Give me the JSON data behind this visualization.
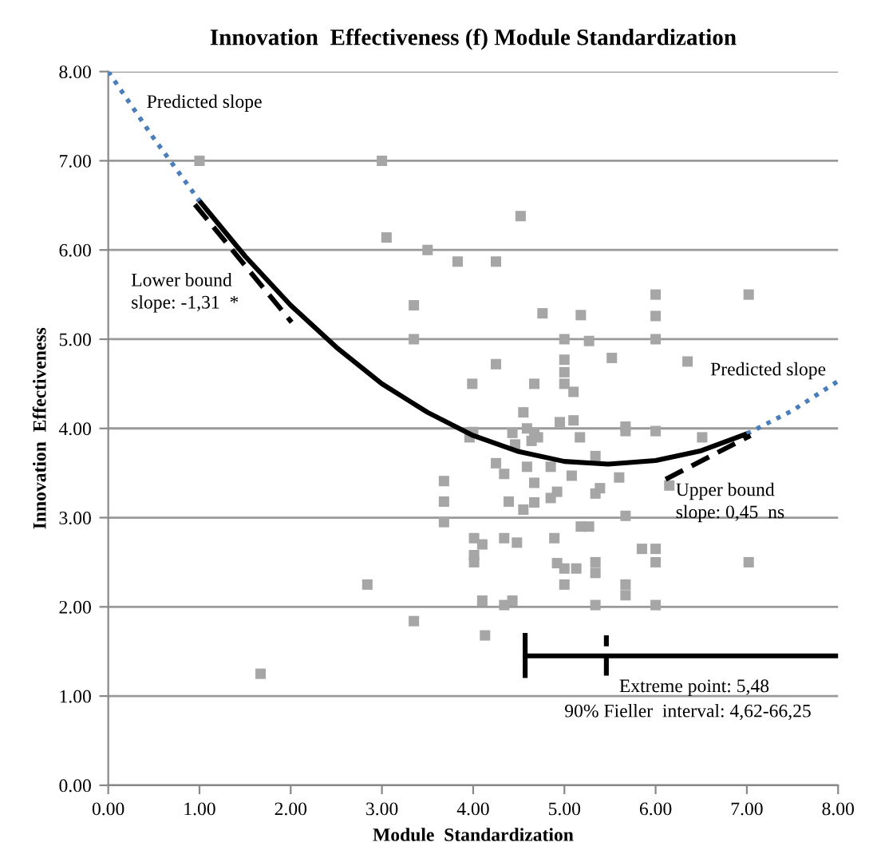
{
  "chart_data": {
    "type": "scatter",
    "title": "Innovation  Effectiveness (f) Module Standardization",
    "xlabel": "Module  Standardization",
    "ylabel": "Innovation  Effectiveness",
    "xlim": [
      0,
      8
    ],
    "ylim": [
      0,
      8
    ],
    "xticks": [
      {
        "value": 0,
        "label": "0.00"
      },
      {
        "value": 1,
        "label": "1.00"
      },
      {
        "value": 2,
        "label": "2.00"
      },
      {
        "value": 3,
        "label": "3.00"
      },
      {
        "value": 4,
        "label": "4.00"
      },
      {
        "value": 5,
        "label": "5.00"
      },
      {
        "value": 6,
        "label": "6.00"
      },
      {
        "value": 7,
        "label": "7.00"
      },
      {
        "value": 8,
        "label": "8.00"
      }
    ],
    "yticks": [
      {
        "value": 0,
        "label": "0.00"
      },
      {
        "value": 1,
        "label": "1.00"
      },
      {
        "value": 2,
        "label": "2.00"
      },
      {
        "value": 3,
        "label": "3.00"
      },
      {
        "value": 4,
        "label": "4.00"
      },
      {
        "value": 5,
        "label": "5.00"
      },
      {
        "value": 6,
        "label": "6.00"
      },
      {
        "value": 7,
        "label": "7.00"
      },
      {
        "value": 8,
        "label": "8.00"
      }
    ],
    "grid": "y",
    "annotations": [
      "Predicted slope",
      "Lower bound\nslope: -1,31  *",
      "Predicted slope",
      "Upper bound\nslope: 0,45  ns",
      "Extreme point: 5,48",
      "90% Fieller  interval: 4,62-66,25"
    ],
    "series": [
      {
        "color": "#a6a6a6",
        "marker": "square",
        "x": [
          1.0,
          3.0,
          3.05,
          3.5,
          3.83,
          4.25,
          4.52,
          3.35,
          3.35,
          4.76,
          5.18,
          5.0,
          5.27,
          5.52,
          6.0,
          6.0,
          6.0,
          6.35,
          7.02,
          5.0,
          5.0,
          4.25,
          3.99,
          4.67,
          5.0,
          5.1,
          4.55,
          4.95,
          5.1,
          4.0,
          4.43,
          4.59,
          4.67,
          4.64,
          4.71,
          4.46,
          4.25,
          3.96,
          5.17,
          5.34,
          5.67,
          5.67,
          6.0,
          6.51,
          3.68,
          3.68,
          3.68,
          4.34,
          4.59,
          4.85,
          4.67,
          5.08,
          5.6,
          5.34,
          5.39,
          4.39,
          4.55,
          4.67,
          4.85,
          4.92,
          5.67,
          5.18,
          5.27,
          6.15,
          4.01,
          4.1,
          4.01,
          4.01,
          4.34,
          4.48,
          4.89,
          4.92,
          5.0,
          5.13,
          5.0,
          5.34,
          5.34,
          5.67,
          5.67,
          5.85,
          6.0,
          6.0,
          7.02,
          6.0,
          2.84,
          4.1,
          4.34,
          4.43,
          5.34,
          3.35,
          4.13,
          1.67
        ],
        "values": [
          7.0,
          7.0,
          6.14,
          6.0,
          5.87,
          5.87,
          6.38,
          5.38,
          5.0,
          5.29,
          5.27,
          5.0,
          4.98,
          4.79,
          5.5,
          5.26,
          5.0,
          4.75,
          5.5,
          4.77,
          4.63,
          4.72,
          4.5,
          4.5,
          4.5,
          4.41,
          4.18,
          4.07,
          4.09,
          3.96,
          3.95,
          4.0,
          3.95,
          3.86,
          3.9,
          3.82,
          3.61,
          3.9,
          3.9,
          3.69,
          4.02,
          3.97,
          3.97,
          3.9,
          3.41,
          3.18,
          2.95,
          3.49,
          3.57,
          3.57,
          3.39,
          3.47,
          3.45,
          3.27,
          3.33,
          3.18,
          3.09,
          3.17,
          3.22,
          3.29,
          3.02,
          2.9,
          2.9,
          3.36,
          2.77,
          2.7,
          2.58,
          2.5,
          2.77,
          2.72,
          2.77,
          2.49,
          2.43,
          2.43,
          2.25,
          2.5,
          2.38,
          2.25,
          2.13,
          2.65,
          2.65,
          2.5,
          2.5,
          2.02,
          2.25,
          2.07,
          2.02,
          2.07,
          2.02,
          1.84,
          1.68,
          1.25
        ]
      },
      {
        "type": "line",
        "color": "#000000",
        "line_style": "solid",
        "x": [
          1,
          1.5,
          2,
          2.5,
          3,
          3.5,
          4,
          4.5,
          5,
          5.48,
          6,
          6.5,
          7
        ],
        "values": [
          6.55,
          5.93,
          5.38,
          4.91,
          4.5,
          4.18,
          3.92,
          3.74,
          3.63,
          3.6,
          3.64,
          3.75,
          3.94
        ]
      },
      {
        "type": "line",
        "color": "#4a7ebb",
        "line_style": "dotted",
        "x": [
          0,
          0.5,
          1
        ],
        "values": [
          8.0,
          7.25,
          6.55
        ]
      },
      {
        "type": "line",
        "color": "#4a7ebb",
        "line_style": "dotted",
        "x": [
          7,
          7.5,
          8
        ],
        "values": [
          3.94,
          4.2,
          4.53
        ]
      },
      {
        "type": "line",
        "color": "#000000",
        "line_style": "dashed",
        "x": [
          0.95,
          2.01
        ],
        "values": [
          6.51,
          5.19
        ]
      },
      {
        "type": "line",
        "color": "#000000",
        "line_style": "dashed",
        "x": [
          6.11,
          7.04
        ],
        "values": [
          3.43,
          3.92
        ]
      },
      {
        "type": "line",
        "color": "#000000",
        "line_style": "solid",
        "x": [
          4.57,
          8.0
        ],
        "values": [
          1.45,
          1.45
        ]
      },
      {
        "type": "line",
        "color": "#000000",
        "line_style": "solid",
        "x": [
          4.57,
          4.57
        ],
        "values": [
          1.23,
          1.68
        ]
      },
      {
        "type": "line",
        "color": "#000000",
        "line_style": "dashed",
        "x": [
          5.46,
          5.46
        ],
        "values": [
          1.23,
          1.68
        ]
      }
    ]
  }
}
